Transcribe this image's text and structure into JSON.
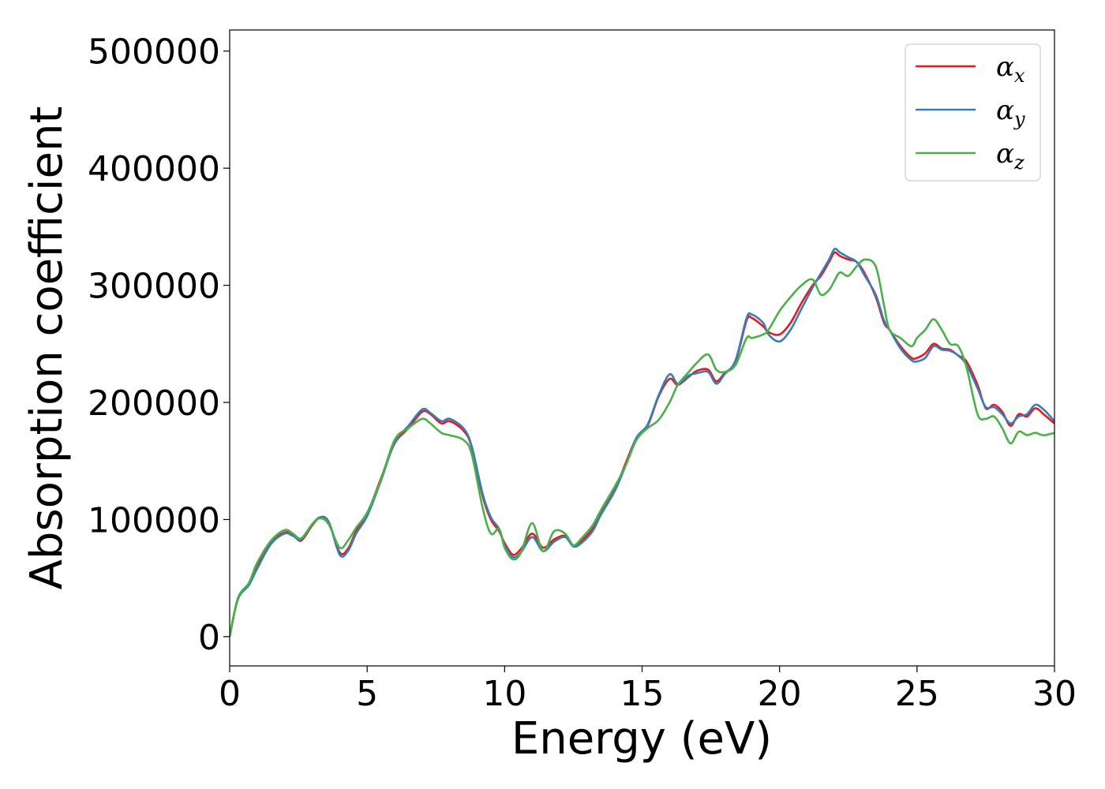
{
  "chart_data": {
    "type": "line",
    "xlabel": "Energy (eV)",
    "ylabel": "Absorption coefficient",
    "xlim": [
      0,
      30
    ],
    "ylim": [
      -25000,
      518000
    ],
    "xticks": [
      0,
      5,
      10,
      15,
      20,
      25,
      30
    ],
    "yticks": [
      0,
      100000,
      200000,
      300000,
      400000,
      500000
    ],
    "grid": false,
    "legend_position": "top-right",
    "series": [
      {
        "name": "α",
        "subscript": "x",
        "color": "#e41a1c",
        "x": [
          0,
          0.3,
          0.7,
          1.0,
          1.5,
          2.0,
          2.3,
          2.6,
          3.0,
          3.3,
          3.6,
          4.0,
          4.3,
          4.6,
          5.0,
          5.5,
          6.0,
          6.5,
          7.0,
          7.3,
          7.7,
          8.0,
          8.5,
          8.8,
          9.2,
          9.5,
          9.8,
          10.0,
          10.3,
          10.6,
          11.0,
          11.4,
          11.8,
          12.2,
          12.5,
          12.8,
          13.2,
          13.5,
          14.0,
          14.4,
          14.8,
          15.2,
          15.6,
          16.0,
          16.3,
          16.7,
          17.0,
          17.4,
          17.7,
          18.0,
          18.4,
          18.8,
          19.0,
          19.4,
          19.6,
          20.0,
          20.4,
          20.8,
          21.2,
          21.5,
          21.8,
          22.0,
          22.2,
          22.5,
          22.8,
          23.1,
          23.5,
          23.8,
          24.0,
          24.4,
          24.8,
          25.0,
          25.3,
          25.6,
          25.9,
          26.2,
          26.5,
          26.8,
          27.2,
          27.5,
          27.8,
          28.1,
          28.4,
          28.7,
          29.0,
          29.3,
          29.6,
          30.0
        ],
        "y": [
          0,
          32000,
          45000,
          60000,
          80000,
          89000,
          87000,
          82000,
          95000,
          102000,
          98000,
          72000,
          75000,
          90000,
          105000,
          135000,
          165000,
          178000,
          192000,
          190000,
          182000,
          184000,
          176000,
          162000,
          120000,
          100000,
          90000,
          80000,
          70000,
          75000,
          88000,
          76000,
          83000,
          86000,
          78000,
          82000,
          92000,
          105000,
          125000,
          148000,
          170000,
          180000,
          205000,
          220000,
          215000,
          222000,
          227000,
          228000,
          218000,
          225000,
          235000,
          270000,
          272000,
          265000,
          260000,
          258000,
          268000,
          285000,
          300000,
          308000,
          320000,
          328000,
          325000,
          322000,
          320000,
          310000,
          290000,
          268000,
          262000,
          248000,
          238000,
          238000,
          242000,
          250000,
          246000,
          245000,
          240000,
          235000,
          215000,
          195000,
          198000,
          192000,
          180000,
          190000,
          188000,
          195000,
          190000,
          182000
        ]
      },
      {
        "name": "α",
        "subscript": "y",
        "color": "#377eb8",
        "x": [
          0,
          0.3,
          0.7,
          1.0,
          1.5,
          2.0,
          2.3,
          2.6,
          3.0,
          3.3,
          3.6,
          4.0,
          4.3,
          4.6,
          5.0,
          5.5,
          6.0,
          6.5,
          7.0,
          7.3,
          7.7,
          8.0,
          8.5,
          8.8,
          9.2,
          9.5,
          9.8,
          10.0,
          10.3,
          10.6,
          11.0,
          11.4,
          11.8,
          12.2,
          12.5,
          12.8,
          13.2,
          13.5,
          14.0,
          14.4,
          14.8,
          15.2,
          15.6,
          16.0,
          16.3,
          16.7,
          17.0,
          17.4,
          17.7,
          18.0,
          18.4,
          18.8,
          19.0,
          19.4,
          19.6,
          20.0,
          20.4,
          20.8,
          21.2,
          21.5,
          21.8,
          22.0,
          22.2,
          22.5,
          22.8,
          23.1,
          23.5,
          23.8,
          24.0,
          24.4,
          24.8,
          25.0,
          25.3,
          25.6,
          25.9,
          26.2,
          26.5,
          26.8,
          27.2,
          27.5,
          27.8,
          28.1,
          28.4,
          28.7,
          29.0,
          29.3,
          29.6,
          30.0
        ],
        "y": [
          0,
          32000,
          44000,
          58000,
          79000,
          88000,
          86000,
          83000,
          96000,
          102000,
          98000,
          70000,
          73000,
          88000,
          103000,
          133000,
          166000,
          180000,
          194000,
          191000,
          184000,
          186000,
          178000,
          163000,
          122000,
          102000,
          92000,
          78000,
          68000,
          72000,
          85000,
          73000,
          81000,
          85000,
          77000,
          80000,
          90000,
          104000,
          124000,
          146000,
          170000,
          181000,
          206000,
          224000,
          216000,
          223000,
          225000,
          226000,
          216000,
          224000,
          236000,
          272000,
          275000,
          268000,
          258000,
          252000,
          262000,
          280000,
          298000,
          310000,
          322000,
          331000,
          328000,
          324000,
          320000,
          308000,
          292000,
          270000,
          262000,
          246000,
          236000,
          235000,
          238000,
          248000,
          245000,
          244000,
          240000,
          232000,
          212000,
          196000,
          196000,
          190000,
          182000,
          188000,
          190000,
          198000,
          194000,
          184000
        ]
      },
      {
        "name": "α",
        "subscript": "z",
        "color": "#4daf4a",
        "x": [
          0,
          0.3,
          0.7,
          1.0,
          1.5,
          2.0,
          2.3,
          2.6,
          3.0,
          3.3,
          3.6,
          4.0,
          4.3,
          4.6,
          5.0,
          5.5,
          6.0,
          6.5,
          7.0,
          7.3,
          7.7,
          8.0,
          8.5,
          8.8,
          9.2,
          9.5,
          9.8,
          10.0,
          10.3,
          10.6,
          11.0,
          11.4,
          11.8,
          12.2,
          12.5,
          12.8,
          13.2,
          13.5,
          14.0,
          14.4,
          14.8,
          15.2,
          15.6,
          16.0,
          16.3,
          16.7,
          17.0,
          17.4,
          17.7,
          18.0,
          18.4,
          18.8,
          19.0,
          19.4,
          19.6,
          20.0,
          20.4,
          20.8,
          21.2,
          21.5,
          21.8,
          22.0,
          22.2,
          22.5,
          22.8,
          23.1,
          23.5,
          23.8,
          24.0,
          24.4,
          24.8,
          25.0,
          25.3,
          25.6,
          25.9,
          26.2,
          26.5,
          26.8,
          27.2,
          27.5,
          27.8,
          28.1,
          28.4,
          28.7,
          29.0,
          29.3,
          29.6,
          30.0
        ],
        "y": [
          0,
          33000,
          46000,
          63000,
          82000,
          91000,
          88000,
          84000,
          96000,
          101000,
          96000,
          76000,
          82000,
          93000,
          106000,
          134000,
          168000,
          178000,
          186000,
          182000,
          174000,
          172000,
          168000,
          156000,
          110000,
          88000,
          92000,
          76000,
          66000,
          72000,
          97000,
          73000,
          90000,
          88000,
          78000,
          84000,
          95000,
          108000,
          128000,
          146000,
          168000,
          178000,
          185000,
          200000,
          215000,
          226000,
          234000,
          241000,
          228000,
          226000,
          232000,
          255000,
          255000,
          258000,
          262000,
          278000,
          290000,
          300000,
          305000,
          292000,
          296000,
          304000,
          311000,
          308000,
          316000,
          322000,
          316000,
          283000,
          262000,
          255000,
          248000,
          255000,
          262000,
          271000,
          262000,
          250000,
          248000,
          230000,
          190000,
          186000,
          188000,
          178000,
          165000,
          175000,
          172000,
          174000,
          172000,
          174000
        ]
      }
    ]
  }
}
